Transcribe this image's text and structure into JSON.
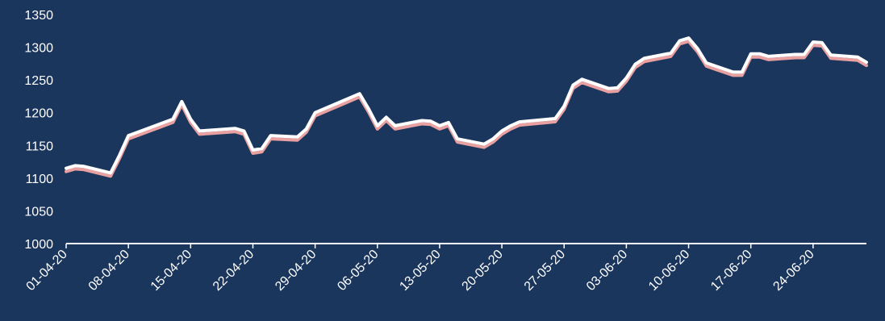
{
  "chart_data": {
    "type": "line",
    "title": "",
    "xlabel": "",
    "ylabel": "",
    "ylim": [
      1000,
      1350
    ],
    "y_ticks": [
      1000,
      1050,
      1100,
      1150,
      1200,
      1250,
      1300,
      1350
    ],
    "x_tick_labels": [
      "01-04-20",
      "08-04-20",
      "15-04-20",
      "22-04-20",
      "29-04-20",
      "06-05-20",
      "13-05-20",
      "20-05-20",
      "27-05-20",
      "03-06-20",
      "10-06-20",
      "17-06-20",
      "24-06-20"
    ],
    "grid": false,
    "colors": {
      "background": "#1b365d",
      "line": "#ffffff",
      "shadow": "#e8a0a0",
      "drop_lines": "#ffffff"
    },
    "x": [
      "2020-04-01",
      "2020-04-02",
      "2020-04-03",
      "2020-04-06",
      "2020-04-07",
      "2020-04-08",
      "2020-04-09",
      "2020-04-13",
      "2020-04-14",
      "2020-04-15",
      "2020-04-16",
      "2020-04-17",
      "2020-04-20",
      "2020-04-21",
      "2020-04-22",
      "2020-04-23",
      "2020-04-24",
      "2020-04-27",
      "2020-04-28",
      "2020-04-29",
      "2020-05-04",
      "2020-05-05",
      "2020-05-06",
      "2020-05-07",
      "2020-05-08",
      "2020-05-11",
      "2020-05-12",
      "2020-05-13",
      "2020-05-14",
      "2020-05-15",
      "2020-05-18",
      "2020-05-19",
      "2020-05-20",
      "2020-05-21",
      "2020-05-22",
      "2020-05-26",
      "2020-05-27",
      "2020-05-28",
      "2020-05-29",
      "2020-06-01",
      "2020-06-02",
      "2020-06-03",
      "2020-06-04",
      "2020-06-05",
      "2020-06-08",
      "2020-06-09",
      "2020-06-10",
      "2020-06-11",
      "2020-06-12",
      "2020-06-15",
      "2020-06-16",
      "2020-06-17",
      "2020-06-18",
      "2020-06-19",
      "2020-06-22",
      "2020-06-23",
      "2020-06-24",
      "2020-06-25",
      "2020-06-26",
      "2020-06-29",
      "2020-06-30"
    ],
    "series": [
      {
        "name": "",
        "values": [
          1115,
          1119,
          1118,
          1108,
          1135,
          1165,
          1170,
          1190,
          1217,
          1190,
          1172,
          1173,
          1176,
          1172,
          1143,
          1145,
          1165,
          1163,
          1175,
          1200,
          1229,
          1206,
          1180,
          1193,
          1180,
          1188,
          1187,
          1180,
          1185,
          1160,
          1152,
          1160,
          1172,
          1180,
          1186,
          1191,
          1210,
          1242,
          1251,
          1237,
          1238,
          1253,
          1274,
          1283,
          1291,
          1310,
          1314,
          1298,
          1276,
          1262,
          1262,
          1290,
          1290,
          1286,
          1289,
          1289,
          1308,
          1307,
          1288,
          1285,
          1277
        ]
      }
    ]
  }
}
